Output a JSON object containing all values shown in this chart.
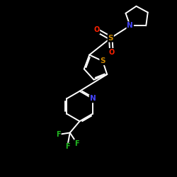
{
  "bg_color": "#000000",
  "bond_color": "#ffffff",
  "atom_colors": {
    "S": "#cc8800",
    "N": "#4444ff",
    "O": "#ff2200",
    "F": "#22bb22",
    "C": "#ffffff"
  },
  "lw": 1.4,
  "figsize": [
    2.5,
    2.5
  ],
  "dpi": 100,
  "xlim": [
    0,
    10
  ],
  "ylim": [
    0,
    10
  ]
}
